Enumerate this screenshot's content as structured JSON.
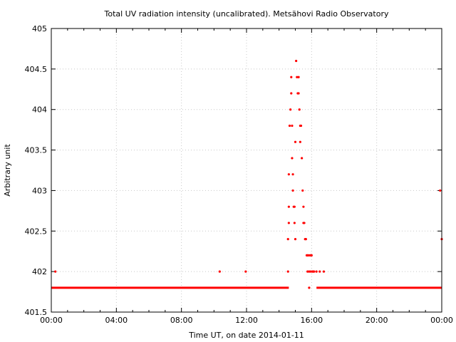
{
  "chart_data": {
    "type": "scatter",
    "title": "Total UV radiation intensity (uncalibrated). Metsähovi Radio Observatory",
    "xlabel": "Time UT, on date 2014-01-11",
    "ylabel": "Arbitrary unit",
    "xlim": [
      0,
      24
    ],
    "ylim": [
      401.5,
      405
    ],
    "grid": true,
    "x_ticks": [
      {
        "value": 0,
        "label": "00:00"
      },
      {
        "value": 4,
        "label": "04:00"
      },
      {
        "value": 8,
        "label": "08:00"
      },
      {
        "value": 12,
        "label": "12:00"
      },
      {
        "value": 16,
        "label": "16:00"
      },
      {
        "value": 20,
        "label": "20:00"
      },
      {
        "value": 24,
        "label": "00:00"
      }
    ],
    "y_ticks": [
      {
        "value": 401.5,
        "label": "401.5"
      },
      {
        "value": 402,
        "label": "402"
      },
      {
        "value": 402.5,
        "label": "402.5"
      },
      {
        "value": 403,
        "label": "403"
      },
      {
        "value": 403.5,
        "label": "403.5"
      },
      {
        "value": 404,
        "label": "404"
      },
      {
        "value": 404.5,
        "label": "404.5"
      },
      {
        "value": 405,
        "label": "405"
      }
    ],
    "color": "#ff0000",
    "series": [
      {
        "baseline": {
          "y": 401.8,
          "x_start": 0,
          "x_end": 14.6
        },
        "baseline2": {
          "y": 401.8,
          "x_start": 16.3,
          "x_end": 24
        },
        "points": [
          [
            0.25,
            402.0
          ],
          [
            10.35,
            402.0
          ],
          [
            11.95,
            402.0
          ],
          [
            14.55,
            402.0
          ],
          [
            14.55,
            402.4
          ],
          [
            14.6,
            402.6
          ],
          [
            14.6,
            402.8
          ],
          [
            14.6,
            403.2
          ],
          [
            14.65,
            403.8
          ],
          [
            14.7,
            404.0
          ],
          [
            14.75,
            404.4
          ],
          [
            14.75,
            404.2
          ],
          [
            14.8,
            403.8
          ],
          [
            14.8,
            403.4
          ],
          [
            14.85,
            403.2
          ],
          [
            14.85,
            403.0
          ],
          [
            14.9,
            402.8
          ],
          [
            14.95,
            402.8
          ],
          [
            14.95,
            402.6
          ],
          [
            15.0,
            402.4
          ],
          [
            15.0,
            403.6
          ],
          [
            15.05,
            404.6
          ],
          [
            15.1,
            404.4
          ],
          [
            15.15,
            404.2
          ],
          [
            15.2,
            404.4
          ],
          [
            15.2,
            404.2
          ],
          [
            15.25,
            404.0
          ],
          [
            15.3,
            403.8
          ],
          [
            15.3,
            403.6
          ],
          [
            15.35,
            403.8
          ],
          [
            15.4,
            403.4
          ],
          [
            15.45,
            403.0
          ],
          [
            15.5,
            402.8
          ],
          [
            15.5,
            402.6
          ],
          [
            15.55,
            402.6
          ],
          [
            15.6,
            402.4
          ],
          [
            15.65,
            402.4
          ],
          [
            15.7,
            402.2
          ],
          [
            15.75,
            402.2
          ],
          [
            15.8,
            402.2
          ],
          [
            15.75,
            402.0
          ],
          [
            15.85,
            402.0
          ],
          [
            15.9,
            402.2
          ],
          [
            15.95,
            402.2
          ],
          [
            16.0,
            402.2
          ],
          [
            15.95,
            402.0
          ],
          [
            16.05,
            402.0
          ],
          [
            16.1,
            402.0
          ],
          [
            16.15,
            402.0
          ],
          [
            16.3,
            402.0
          ],
          [
            16.5,
            402.0
          ],
          [
            16.75,
            402.0
          ],
          [
            15.85,
            401.8
          ],
          [
            23.9,
            403.0
          ],
          [
            24.0,
            402.4
          ]
        ]
      }
    ]
  }
}
